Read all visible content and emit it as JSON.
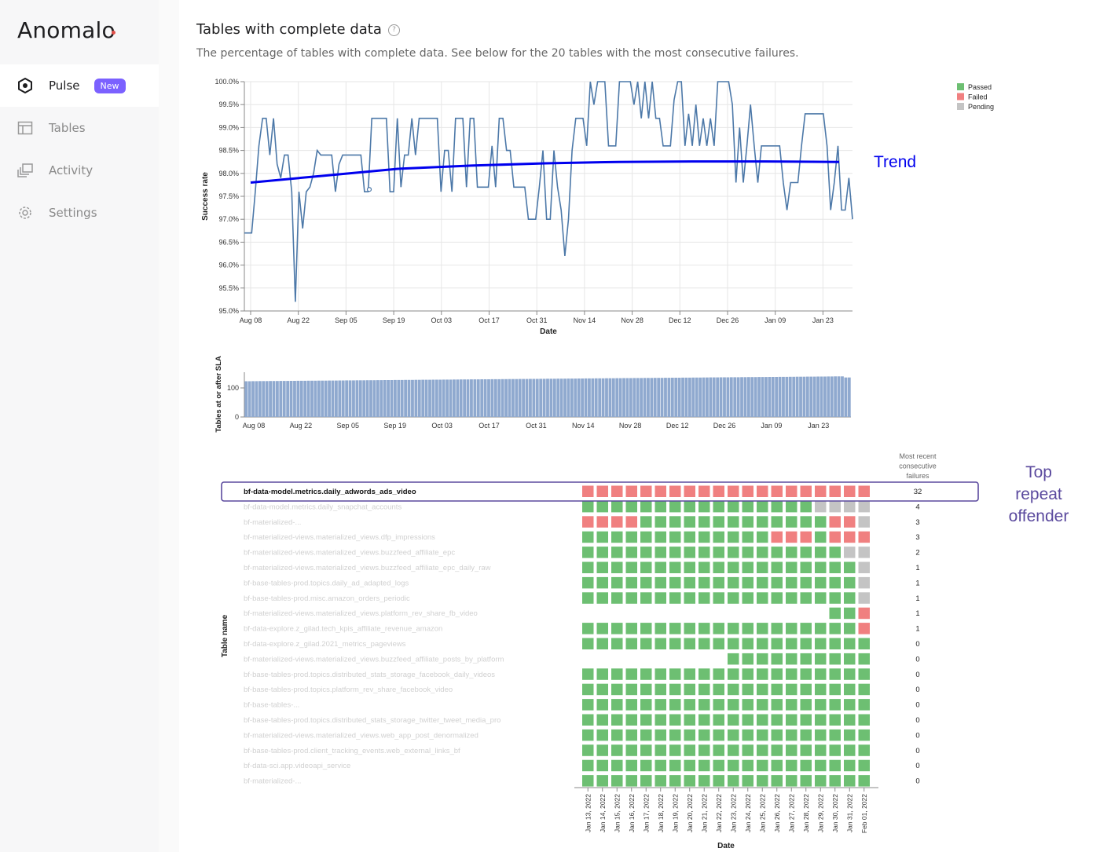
{
  "app": {
    "logo": "Anomalo"
  },
  "sidebar": {
    "items": [
      {
        "label": "Pulse",
        "icon": "pulse-hexagon-icon",
        "badge": "New",
        "active": true
      },
      {
        "label": "Tables",
        "icon": "table-icon"
      },
      {
        "label": "Activity",
        "icon": "activity-icon"
      },
      {
        "label": "Settings",
        "icon": "gear-icon"
      }
    ]
  },
  "page": {
    "title": "Tables with complete data",
    "subtitle": "The percentage of tables with complete data. See below for the 20 tables with the most consecutive failures."
  },
  "colors": {
    "accent": "#7b61ff",
    "line": "#4c78a8",
    "trend": "#0000ee",
    "passed": "#6dbf72",
    "failed": "#f08080",
    "pending": "#c4c4c4",
    "highlight": "#5b4a9e"
  },
  "annotations": {
    "trend": "Trend",
    "top_repeat": [
      "Top",
      "repeat",
      "offender"
    ]
  },
  "chart_data": [
    {
      "type": "line",
      "xlabel": "Date",
      "ylabel": "Success rate",
      "ylim": [
        95.0,
        100.0
      ],
      "yticks": [
        "95.0%",
        "95.5%",
        "96.0%",
        "96.5%",
        "97.0%",
        "97.5%",
        "98.0%",
        "98.5%",
        "99.0%",
        "99.5%",
        "100.0%"
      ],
      "xticks": [
        "Aug 08",
        "Aug 22",
        "Sep 05",
        "Sep 19",
        "Oct 03",
        "Oct 17",
        "Oct 31",
        "Nov 14",
        "Nov 28",
        "Dec 12",
        "Dec 26",
        "Jan 09",
        "Jan 23"
      ],
      "legend": {
        "placement": "top-right",
        "entries": [
          "Passed",
          "Failed",
          "Pending"
        ]
      },
      "series": [
        {
          "name": "",
          "values": [
            96.7,
            96.7,
            96.7,
            97.6,
            98.6,
            99.2,
            99.2,
            98.4,
            99.2,
            98.2,
            97.9,
            98.4,
            98.4,
            97.6,
            95.2,
            97.6,
            96.8,
            97.6,
            97.7,
            98.0,
            98.5,
            98.4,
            98.4,
            98.4,
            98.4,
            97.6,
            98.2,
            98.4,
            98.4,
            98.4,
            98.4,
            98.4,
            98.4,
            97.6,
            97.6,
            99.2,
            99.2,
            99.2,
            99.2,
            99.2,
            97.6,
            97.6,
            99.2,
            97.7,
            98.4,
            98.4,
            99.2,
            98.4,
            99.2,
            99.2,
            99.2,
            99.2,
            99.2,
            99.2,
            97.6,
            98.5,
            98.5,
            97.6,
            99.2,
            99.2,
            99.2,
            97.7,
            99.2,
            99.2,
            97.7,
            97.7,
            97.7,
            97.7,
            98.6,
            97.7,
            99.2,
            99.2,
            98.5,
            98.5,
            97.7,
            97.7,
            97.7,
            97.7,
            97.0,
            97.0,
            97.0,
            97.7,
            98.5,
            97.0,
            97.0,
            98.5,
            97.7,
            97.2,
            96.2,
            97.0,
            98.5,
            99.2,
            99.2,
            99.2,
            98.6,
            100.0,
            99.5,
            100.0,
            100.0,
            100.0,
            98.6,
            98.6,
            98.6,
            100.0,
            100.0,
            100.0,
            100.0,
            99.5,
            100.0,
            99.2,
            100.0,
            99.2,
            100.0,
            99.2,
            99.2,
            98.6,
            98.6,
            98.6,
            99.6,
            100.0,
            100.0,
            98.6,
            99.3,
            98.6,
            99.5,
            98.6,
            99.2,
            98.6,
            99.2,
            98.6,
            100.0,
            100.0,
            100.0,
            100.0,
            99.5,
            97.8,
            99.0,
            97.8,
            98.6,
            99.5,
            98.6,
            97.8,
            98.6,
            98.6,
            98.6,
            98.6,
            98.6,
            98.6,
            97.8,
            97.2,
            97.8,
            97.8,
            97.8,
            98.6,
            99.3,
            99.3,
            99.3,
            99.3,
            99.3,
            99.3,
            98.6,
            97.2,
            97.8,
            98.6,
            97.2,
            97.2,
            97.9,
            97.0
          ]
        },
        {
          "name": "Trend",
          "values": [
            97.8,
            97.95,
            98.1,
            98.17,
            98.22,
            98.25,
            98.26,
            98.26,
            98.25
          ]
        }
      ]
    },
    {
      "type": "bar",
      "xlabel": "",
      "ylabel": "Tables at or after SLA",
      "ylim": [
        0,
        150
      ],
      "yticks": [
        "0",
        "100"
      ],
      "xticks": [
        "Aug 08",
        "Aug 22",
        "Sep 05",
        "Sep 19",
        "Oct 03",
        "Oct 17",
        "Oct 31",
        "Nov 14",
        "Nov 28",
        "Dec 12",
        "Dec 26",
        "Jan 09",
        "Jan 23"
      ],
      "values_range": [
        123,
        140
      ],
      "bar_count": 175
    },
    {
      "type": "heatmap",
      "xlabel": "Date",
      "ylabel": "Table name",
      "side_header": [
        "Most recent",
        "consecutive",
        "failures"
      ],
      "dates": [
        "Jan 13, 2022",
        "Jan 14, 2022",
        "Jan 15, 2022",
        "Jan 16, 2022",
        "Jan 17, 2022",
        "Jan 18, 2022",
        "Jan 19, 2022",
        "Jan 20, 2022",
        "Jan 21, 2022",
        "Jan 22, 2022",
        "Jan 23, 2022",
        "Jan 24, 2022",
        "Jan 25, 2022",
        "Jan 26, 2022",
        "Jan 27, 2022",
        "Jan 28, 2022",
        "Jan 29, 2022",
        "Jan 30, 2022",
        "Jan 31, 2022",
        "Feb 01, 2022"
      ],
      "rows": [
        {
          "name": "bf-data-model.metrics.daily_adwords_ads_video",
          "failures": "32",
          "cells": "FFFFFFFFFFFFFFFFFFFF"
        },
        {
          "name": "bf-data-model.metrics.daily_snapchat_accounts",
          "failures": "4",
          "cells": "PPPPPPPPPPPPPPPPNNNN"
        },
        {
          "name": "bf-materialized-...",
          "failures": "3",
          "cells": "FFFFPPPPPPPPPPPPPFFN"
        },
        {
          "name": "bf-materialized-views.materialized_views.dfp_impressions",
          "failures": "3",
          "cells": "PPPPPPPPPPPPPFFFPFFF"
        },
        {
          "name": "bf-materialized-views.materialized_views.buzzfeed_affiliate_epc",
          "failures": "2",
          "cells": "PPPPPPPPPPPPPPPPPPNN"
        },
        {
          "name": "bf-materialized-views.materialized_views.buzzfeed_affiliate_epc_daily_raw",
          "failures": "1",
          "cells": "PPPPPPPPPPPPPPPPPPPN"
        },
        {
          "name": "bf-base-tables-prod.topics.daily_ad_adapted_logs",
          "failures": "1",
          "cells": "PPPPPPPPPPPPPPPPPPPN"
        },
        {
          "name": "bf-base-tables-prod.misc.amazon_orders_periodic",
          "failures": "1",
          "cells": "PPPPPPPPPPPPPPPPPPPN"
        },
        {
          "name": "bf-materialized-views.materialized_views.platform_rev_share_fb_video",
          "failures": "1",
          "cells": "-----------------PPF"
        },
        {
          "name": "bf-data-explore.z_gilad.tech_kpis_affiliate_revenue_amazon",
          "failures": "1",
          "cells": "PPPPPPPPPPPPPPPPPPPF"
        },
        {
          "name": "bf-data-explore.z_gilad.2021_metrics_pageviews",
          "failures": "0",
          "cells": "PPPPPPPPPPPPPPPPPPPP"
        },
        {
          "name": "bf-materialized-views.materialized_views.buzzfeed_affiliate_posts_by_platform",
          "failures": "0",
          "cells": "----------PPPPPPPPPP"
        },
        {
          "name": "bf-base-tables-prod.topics.distributed_stats_storage_facebook_daily_videos",
          "failures": "0",
          "cells": "PPPPPPPPPPPPPPPPPPPP"
        },
        {
          "name": "bf-base-tables-prod.topics.platform_rev_share_facebook_video",
          "failures": "0",
          "cells": "PPPPPPPPPPPPPPPPPPPP"
        },
        {
          "name": "bf-base-tables-...",
          "failures": "0",
          "cells": "PPPPPPPPPPPPPPPPPPPP"
        },
        {
          "name": "bf-base-tables-prod.topics.distributed_stats_storage_twitter_tweet_media_pro",
          "failures": "0",
          "cells": "PPPPPPPPPPPPPPPPPPPP"
        },
        {
          "name": "bf-materialized-views.materialized_views.web_app_post_denormalized",
          "failures": "0",
          "cells": "PPPPPPPPPPPPPPPPPPPP"
        },
        {
          "name": "bf-base-tables-prod.client_tracking_events.web_external_links_bf",
          "failures": "0",
          "cells": "PPPPPPPPPPPPPPPPPPPP"
        },
        {
          "name": "bf-data-sci.app.videoapi_service",
          "failures": "0",
          "cells": "PPPPPPPPPPPPPPPPPPPP"
        },
        {
          "name": "bf-materialized-...",
          "failures": "0",
          "cells": "PPPPPPPPPPPPPPPPPPPP"
        }
      ]
    }
  ]
}
